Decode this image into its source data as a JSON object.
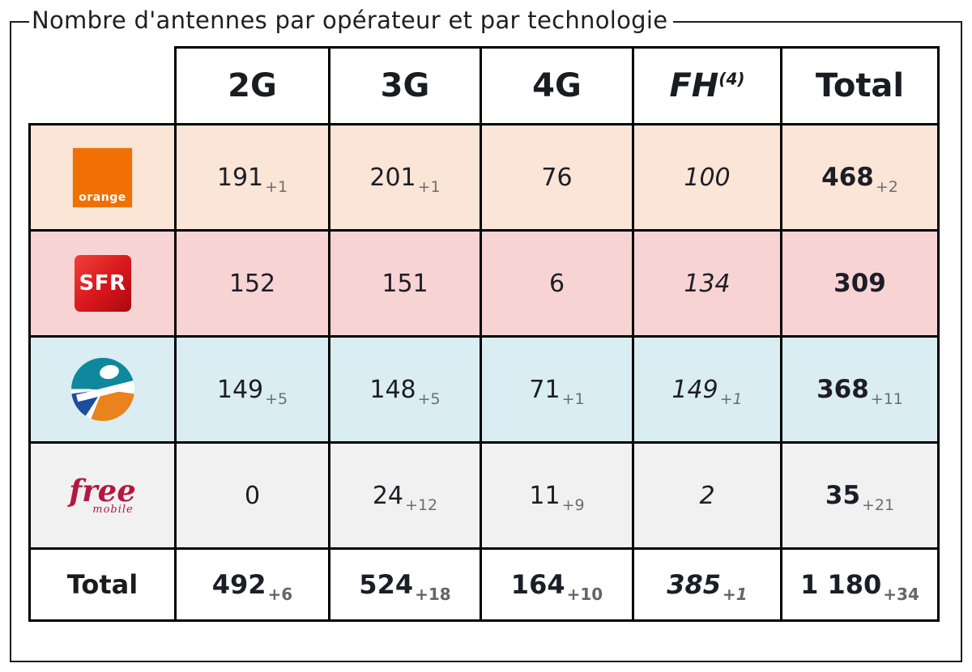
{
  "title": "Nombre d'antennes par opérateur et par technologie",
  "header": {
    "cols": [
      "2G",
      "3G",
      "4G",
      "FH",
      "Total"
    ],
    "fh_sup": "(4)"
  },
  "rows": [
    {
      "name": "orange",
      "logo_text": "orange",
      "bg": "#fbe5d6",
      "cells": [
        {
          "v": "191",
          "d": "+1"
        },
        {
          "v": "201",
          "d": "+1"
        },
        {
          "v": "76",
          "d": ""
        },
        {
          "v": "100",
          "d": ""
        },
        {
          "v": "468",
          "d": "+2"
        }
      ]
    },
    {
      "name": "sfr",
      "logo_text": "SFR",
      "bg": "#f7d4d3",
      "cells": [
        {
          "v": "152",
          "d": ""
        },
        {
          "v": "151",
          "d": ""
        },
        {
          "v": "6",
          "d": ""
        },
        {
          "v": "134",
          "d": ""
        },
        {
          "v": "309",
          "d": ""
        }
      ]
    },
    {
      "name": "bouygues",
      "logo_text": "",
      "bg": "#d9edf3",
      "cells": [
        {
          "v": "149",
          "d": "+5"
        },
        {
          "v": "148",
          "d": "+5"
        },
        {
          "v": "71",
          "d": "+1"
        },
        {
          "v": "149",
          "d": "+1"
        },
        {
          "v": "368",
          "d": "+11"
        }
      ]
    },
    {
      "name": "free",
      "logo_text": "free",
      "logo_subtext": "mobile",
      "bg": "#f1f1f1",
      "cells": [
        {
          "v": "0",
          "d": ""
        },
        {
          "v": "24",
          "d": "+12"
        },
        {
          "v": "11",
          "d": "+9"
        },
        {
          "v": "2",
          "d": ""
        },
        {
          "v": "35",
          "d": "+21"
        }
      ]
    }
  ],
  "total_row": {
    "name": "total",
    "label": "Total",
    "cells": [
      {
        "v": "492",
        "d": "+6"
      },
      {
        "v": "524",
        "d": "+18"
      },
      {
        "v": "164",
        "d": "+10"
      },
      {
        "v": "385",
        "d": "+1"
      },
      {
        "v": "1 180",
        "d": "+34"
      }
    ]
  },
  "colors": {
    "orange_brand": "#f07004",
    "sfr_brand": "#d7161c",
    "bouygues_teal": "#0f879d",
    "bouygues_blue": "#1c4d9e",
    "bouygues_orange": "#e8831d",
    "free_brand": "#b51741",
    "row_orange_bg": "#fbe5d6",
    "row_sfr_bg": "#f7d4d3",
    "row_bouygues_bg": "#d9edf3",
    "row_free_bg": "#f1f1f1",
    "delta_text": "#6e6e6e",
    "border": "#000000"
  },
  "chart_data": {
    "type": "table",
    "title": "Nombre d'antennes par opérateur et par technologie",
    "columns": [
      "2G",
      "3G",
      "4G",
      "FH(4)",
      "Total"
    ],
    "rows": [
      {
        "operator": "Orange",
        "values": [
          191,
          201,
          76,
          100,
          468
        ],
        "deltas": [
          "+1",
          "+1",
          null,
          null,
          "+2"
        ]
      },
      {
        "operator": "SFR",
        "values": [
          152,
          151,
          6,
          134,
          309
        ],
        "deltas": [
          null,
          null,
          null,
          null,
          null
        ]
      },
      {
        "operator": "Bouygues Telecom",
        "values": [
          149,
          148,
          71,
          149,
          368
        ],
        "deltas": [
          "+5",
          "+5",
          "+1",
          "+1",
          "+11"
        ]
      },
      {
        "operator": "Free Mobile",
        "values": [
          0,
          24,
          11,
          2,
          35
        ],
        "deltas": [
          null,
          "+12",
          "+9",
          null,
          "+21"
        ]
      },
      {
        "operator": "Total",
        "values": [
          492,
          524,
          164,
          385,
          1180
        ],
        "deltas": [
          "+6",
          "+18",
          "+10",
          "+1",
          "+34"
        ]
      }
    ],
    "notes": "FH column values italic; Total column and Total row bold; deltas shown as gray subscripts"
  }
}
